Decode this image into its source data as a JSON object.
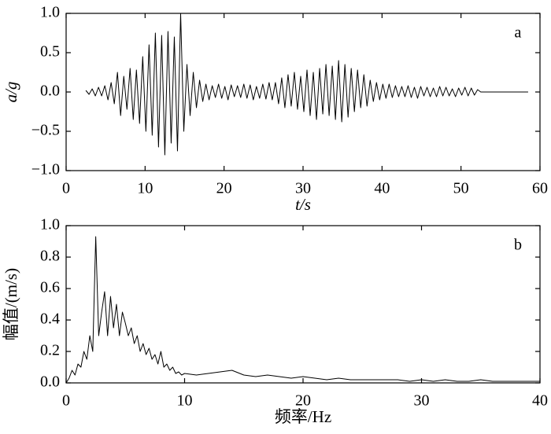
{
  "chart_data": [
    {
      "type": "line",
      "panel_label": "a",
      "xlabel": "t/s",
      "ylabel": "a/g",
      "xlim": [
        0,
        60
      ],
      "ylim": [
        -1.0,
        1.0
      ],
      "xticks": [
        0,
        10,
        20,
        30,
        40,
        50,
        60
      ],
      "yticks": [
        {
          "value": -1.0,
          "label": "−1.0"
        },
        {
          "value": -0.5,
          "label": "−0.5"
        },
        {
          "value": 0,
          "label": "0.0"
        },
        {
          "value": 0.5,
          "label": "0.5"
        },
        {
          "value": 1.0,
          "label": "1.0"
        }
      ],
      "color": "#000000",
      "x": [
        2.5,
        2.9,
        3.3,
        3.7,
        4.1,
        4.5,
        4.9,
        5.3,
        5.7,
        6.1,
        6.5,
        6.9,
        7.3,
        7.7,
        8.1,
        8.5,
        8.9,
        9.3,
        9.7,
        10.1,
        10.5,
        10.9,
        11.3,
        11.7,
        12.1,
        12.5,
        12.9,
        13.3,
        13.7,
        14.1,
        14.5,
        14.9,
        15.3,
        15.7,
        16.1,
        16.5,
        16.9,
        17.3,
        17.7,
        18.1,
        18.5,
        18.9,
        19.3,
        19.7,
        20.1,
        20.5,
        20.9,
        21.3,
        21.7,
        22.1,
        22.5,
        22.9,
        23.3,
        23.7,
        24.1,
        24.5,
        24.9,
        25.3,
        25.7,
        26.1,
        26.5,
        26.9,
        27.3,
        27.7,
        28.1,
        28.5,
        28.9,
        29.3,
        29.7,
        30.1,
        30.5,
        30.9,
        31.3,
        31.7,
        32.1,
        32.5,
        32.9,
        33.3,
        33.7,
        34.1,
        34.5,
        34.9,
        35.3,
        35.7,
        36.1,
        36.5,
        36.9,
        37.3,
        37.7,
        38.1,
        38.5,
        38.9,
        39.3,
        39.7,
        40.1,
        40.5,
        40.9,
        41.3,
        41.7,
        42.1,
        42.5,
        42.9,
        43.3,
        43.7,
        44.1,
        44.5,
        44.9,
        45.3,
        45.7,
        46.1,
        46.5,
        46.9,
        47.3,
        47.7,
        48.1,
        48.5,
        48.9,
        49.3,
        49.7,
        50.1,
        50.5,
        50.9,
        51.3,
        51.7,
        52.1,
        52.5,
        58.5
      ],
      "values": [
        0.02,
        -0.03,
        0.04,
        -0.05,
        0.06,
        -0.05,
        0.08,
        -0.1,
        0.12,
        -0.15,
        0.25,
        -0.3,
        0.2,
        -0.22,
        0.3,
        -0.35,
        0.28,
        -0.4,
        0.45,
        -0.5,
        0.6,
        -0.55,
        0.75,
        -0.7,
        0.72,
        -0.8,
        0.77,
        -0.65,
        0.7,
        -0.75,
        1.0,
        -0.5,
        0.35,
        -0.3,
        0.25,
        -0.2,
        0.15,
        -0.12,
        0.1,
        -0.1,
        0.08,
        -0.07,
        0.1,
        -0.08,
        0.07,
        -0.1,
        0.09,
        -0.06,
        0.08,
        -0.07,
        0.1,
        -0.08,
        0.09,
        -0.1,
        0.07,
        -0.08,
        0.1,
        -0.09,
        0.12,
        -0.1,
        0.12,
        -0.15,
        0.18,
        -0.2,
        0.22,
        -0.18,
        0.25,
        -0.22,
        0.2,
        -0.25,
        0.28,
        -0.3,
        0.25,
        -0.35,
        0.3,
        -0.28,
        0.35,
        -0.3,
        0.33,
        -0.35,
        0.4,
        -0.38,
        0.35,
        -0.32,
        0.3,
        -0.25,
        0.28,
        -0.2,
        0.22,
        -0.18,
        0.15,
        -0.12,
        0.12,
        -0.1,
        0.1,
        -0.08,
        0.1,
        -0.07,
        0.08,
        -0.06,
        0.07,
        -0.06,
        0.08,
        -0.07,
        0.06,
        -0.08,
        0.07,
        -0.05,
        0.06,
        -0.06,
        0.05,
        -0.06,
        0.07,
        -0.05,
        0.06,
        -0.05,
        0.04,
        -0.06,
        0.05,
        -0.04,
        0.06,
        -0.05,
        0.05,
        -0.04,
        0.03,
        0,
        0
      ]
    },
    {
      "type": "line",
      "panel_label": "b",
      "xlabel": "频率/Hz",
      "ylabel": "幅值/(m/s)",
      "xlim": [
        0,
        40
      ],
      "ylim": [
        0,
        1.0
      ],
      "xticks": [
        0,
        10,
        20,
        30,
        40
      ],
      "yticks": [
        {
          "value": 0,
          "label": "0.0"
        },
        {
          "value": 0.2,
          "label": "0.2"
        },
        {
          "value": 0.4,
          "label": "0.4"
        },
        {
          "value": 0.6,
          "label": "0.6"
        },
        {
          "value": 0.8,
          "label": "0.8"
        },
        {
          "value": 1.0,
          "label": "1.0"
        }
      ],
      "color": "#000000",
      "x": [
        0,
        0.25,
        0.5,
        0.75,
        1,
        1.25,
        1.5,
        1.75,
        2,
        2.25,
        2.5,
        2.75,
        3,
        3.25,
        3.5,
        3.75,
        4,
        4.25,
        4.5,
        4.75,
        5,
        5.25,
        5.5,
        5.75,
        6,
        6.25,
        6.5,
        6.75,
        7,
        7.25,
        7.5,
        7.75,
        8,
        8.25,
        8.5,
        8.75,
        9,
        9.25,
        9.5,
        9.75,
        10,
        11,
        12,
        13,
        14,
        15,
        16,
        17,
        18,
        19,
        20,
        21,
        22,
        23,
        24,
        25,
        26,
        27,
        28,
        29,
        30,
        31,
        32,
        33,
        34,
        35,
        36,
        37,
        38,
        39,
        40
      ],
      "values": [
        0,
        0.03,
        0.08,
        0.05,
        0.12,
        0.1,
        0.2,
        0.15,
        0.3,
        0.2,
        0.93,
        0.3,
        0.45,
        0.58,
        0.3,
        0.55,
        0.35,
        0.5,
        0.3,
        0.45,
        0.38,
        0.3,
        0.35,
        0.25,
        0.3,
        0.2,
        0.25,
        0.18,
        0.22,
        0.15,
        0.18,
        0.12,
        0.2,
        0.1,
        0.12,
        0.08,
        0.1,
        0.06,
        0.07,
        0.05,
        0.06,
        0.05,
        0.06,
        0.07,
        0.08,
        0.05,
        0.04,
        0.05,
        0.04,
        0.03,
        0.04,
        0.03,
        0.02,
        0.03,
        0.02,
        0.02,
        0.02,
        0.02,
        0.02,
        0.01,
        0.02,
        0.01,
        0.02,
        0.01,
        0.01,
        0.02,
        0.01,
        0.01,
        0.01,
        0.01,
        0.01
      ]
    }
  ]
}
